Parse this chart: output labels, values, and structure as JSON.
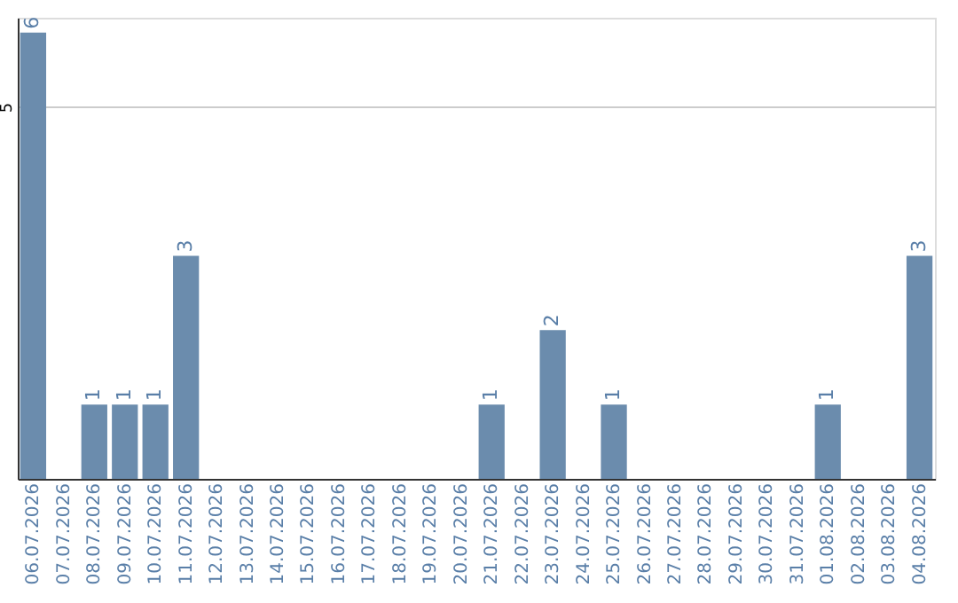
{
  "chart_data": {
    "type": "bar",
    "categories": [
      "06.07.2026",
      "07.07.2026",
      "08.07.2026",
      "09.07.2026",
      "10.07.2026",
      "11.07.2026",
      "12.07.2026",
      "13.07.2026",
      "14.07.2026",
      "15.07.2026",
      "16.07.2026",
      "17.07.2026",
      "18.07.2026",
      "19.07.2026",
      "20.07.2026",
      "21.07.2026",
      "22.07.2026",
      "23.07.2026",
      "24.07.2026",
      "25.07.2026",
      "26.07.2026",
      "27.07.2026",
      "28.07.2026",
      "29.07.2026",
      "30.07.2026",
      "31.07.2026",
      "01.08.2026",
      "02.08.2026",
      "03.08.2026",
      "04.08.2026"
    ],
    "values": [
      6,
      0,
      1,
      1,
      1,
      3,
      0,
      0,
      0,
      0,
      0,
      0,
      0,
      0,
      0,
      1,
      0,
      2,
      0,
      1,
      0,
      0,
      0,
      0,
      0,
      0,
      1,
      0,
      0,
      3
    ],
    "value_labels": [
      "6",
      null,
      "1",
      "1",
      "1",
      "3",
      null,
      null,
      null,
      null,
      null,
      null,
      null,
      null,
      null,
      "1",
      null,
      "2",
      null,
      "1",
      null,
      null,
      null,
      null,
      null,
      null,
      "1",
      null,
      null,
      "3"
    ],
    "color": "#6b8cad",
    "ylim": [
      0,
      6.2
    ],
    "yticks": [
      5
    ],
    "grid": "y"
  }
}
